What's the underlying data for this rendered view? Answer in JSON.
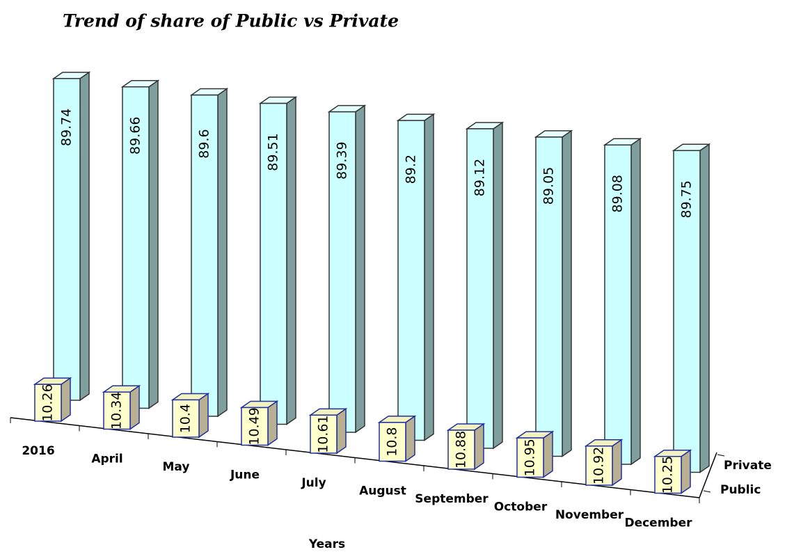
{
  "chart_data": {
    "type": "bar3d",
    "title": "Trend of  share of Public vs Private",
    "x_label": "Years",
    "categories": [
      "2016",
      "April",
      "May",
      "June",
      "July",
      "August",
      "September",
      "October",
      "November",
      "December"
    ],
    "series": [
      {
        "name": "Public",
        "color": "#ffffcc",
        "values": [
          10.26,
          10.34,
          10.4,
          10.49,
          10.61,
          10.8,
          10.88,
          10.95,
          10.92,
          10.25
        ]
      },
      {
        "name": "Private",
        "color": "#ccffff",
        "values": [
          89.74,
          89.66,
          89.6,
          89.51,
          89.39,
          89.2,
          89.12,
          89.05,
          89.08,
          89.75
        ]
      }
    ],
    "ylim": [
      0,
      100
    ]
  }
}
